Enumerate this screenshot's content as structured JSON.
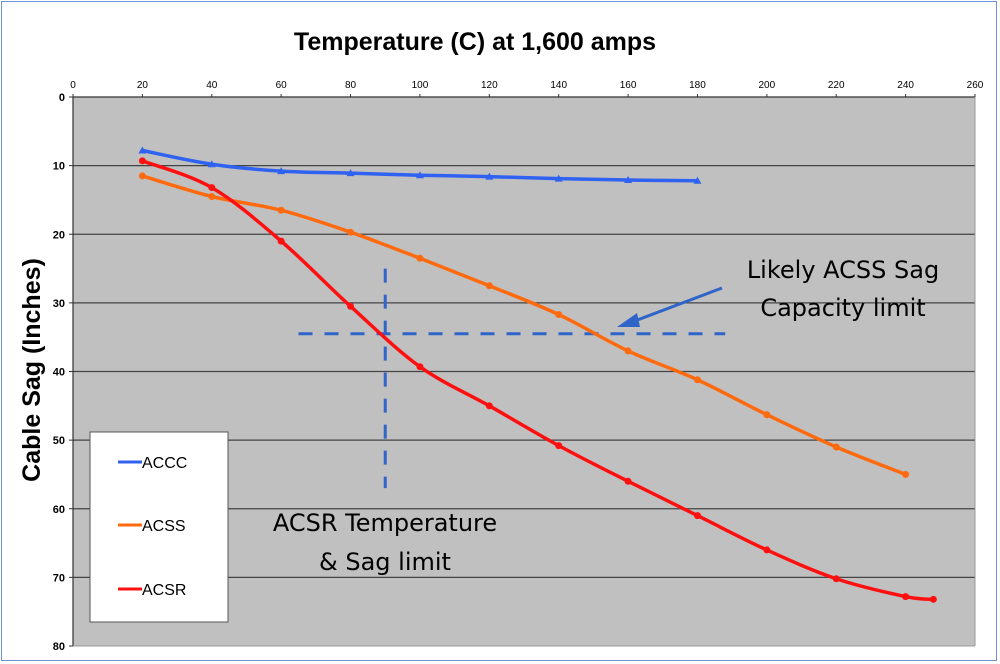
{
  "chart_data": {
    "type": "line",
    "title": "Temperature (C) at 1,600 amps",
    "xlabel": "",
    "ylabel": "Cable Sag (Inches)",
    "xlim": [
      0,
      260
    ],
    "ylim": [
      0,
      80
    ],
    "y_inverted": true,
    "x_axis_position": "top",
    "x_ticks": [
      0,
      20,
      40,
      60,
      80,
      100,
      120,
      140,
      160,
      180,
      200,
      220,
      240,
      260
    ],
    "y_ticks": [
      0,
      10,
      20,
      30,
      40,
      50,
      60,
      70,
      80
    ],
    "grid": "horizontal",
    "legend_position": "bottom-left",
    "series": [
      {
        "name": "ACCC",
        "color": "#2f62f0",
        "marker": "triangle",
        "x": [
          20,
          40,
          60,
          80,
          100,
          120,
          140,
          160,
          180
        ],
        "values": [
          7.8,
          9.8,
          10.8,
          11.1,
          11.4,
          11.6,
          11.9,
          12.1,
          12.2
        ]
      },
      {
        "name": "ACSS",
        "color": "#ff6a0f",
        "marker": "circle",
        "x": [
          20,
          40,
          60,
          80,
          100,
          120,
          140,
          160,
          180,
          200,
          220,
          240
        ],
        "values": [
          11.5,
          14.5,
          16.5,
          19.7,
          23.5,
          27.5,
          31.7,
          37.0,
          41.2,
          46.3,
          51.0,
          55.0
        ]
      },
      {
        "name": "ACSR",
        "color": "#ff1010",
        "marker": "circle",
        "x": [
          20,
          40,
          60,
          80,
          100,
          120,
          140,
          160,
          180,
          200,
          220,
          240,
          248
        ],
        "values": [
          9.3,
          13.2,
          21.0,
          30.5,
          39.3,
          45.0,
          50.8,
          56.0,
          61.0,
          66.0,
          70.2,
          72.8,
          73.2
        ]
      }
    ],
    "reference_lines": [
      {
        "name": "acss-sag-limit",
        "orientation": "horizontal",
        "y": 34.5,
        "x_range": [
          65,
          188
        ],
        "color": "#2f65c8",
        "style": "dashed"
      },
      {
        "name": "acsr-temperature-limit",
        "orientation": "vertical",
        "x": 90,
        "y_range": [
          25,
          57
        ],
        "color": "#2f65c8",
        "style": "dashed"
      }
    ],
    "annotations": [
      {
        "name": "acss-annotation",
        "lines": [
          "Likely ACSS Sag",
          "Capacity limit"
        ],
        "arrow_to": [
          150,
          33.5
        ]
      },
      {
        "name": "acsr-annotation",
        "lines": [
          "ACSR Temperature",
          "& Sag limit"
        ]
      }
    ]
  }
}
